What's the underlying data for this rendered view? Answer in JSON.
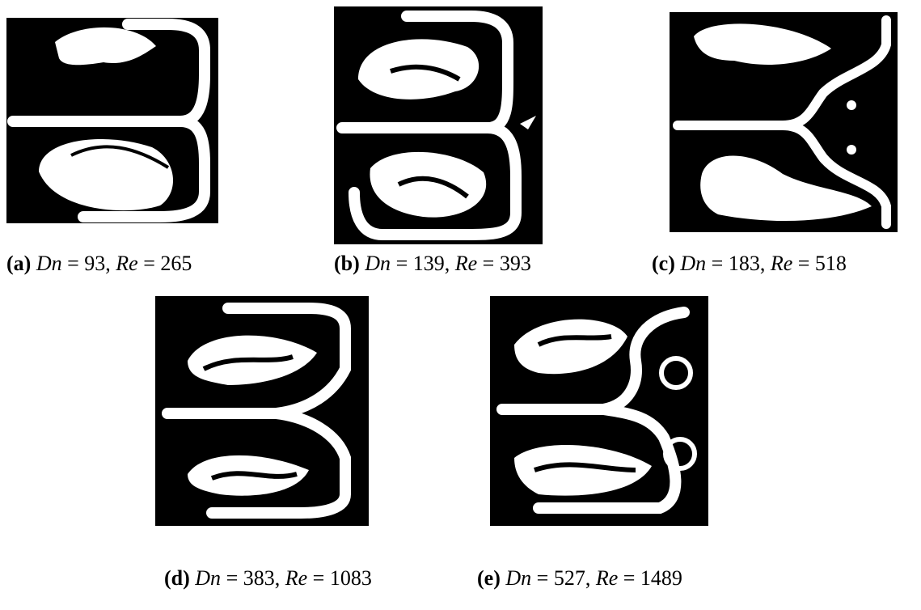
{
  "caption_format": {
    "equals": "=",
    "separator": ","
  },
  "panels": [
    {
      "label": "(a)",
      "symbol1": "Dn",
      "value1": "93",
      "symbol2": "Re",
      "value2": "265"
    },
    {
      "label": "(b)",
      "symbol1": "Dn",
      "value1": "139",
      "symbol2": "Re",
      "value2": "393"
    },
    {
      "label": "(c)",
      "symbol1": "Dn",
      "value1": "183",
      "symbol2": "Re",
      "value2": "518"
    },
    {
      "label": "(d)",
      "symbol1": "Dn",
      "value1": "383",
      "symbol2": "Re",
      "value2": "1083"
    },
    {
      "label": "(e)",
      "symbol1": "Dn",
      "value1": "527",
      "symbol2": "Re",
      "value2": "1489"
    }
  ]
}
